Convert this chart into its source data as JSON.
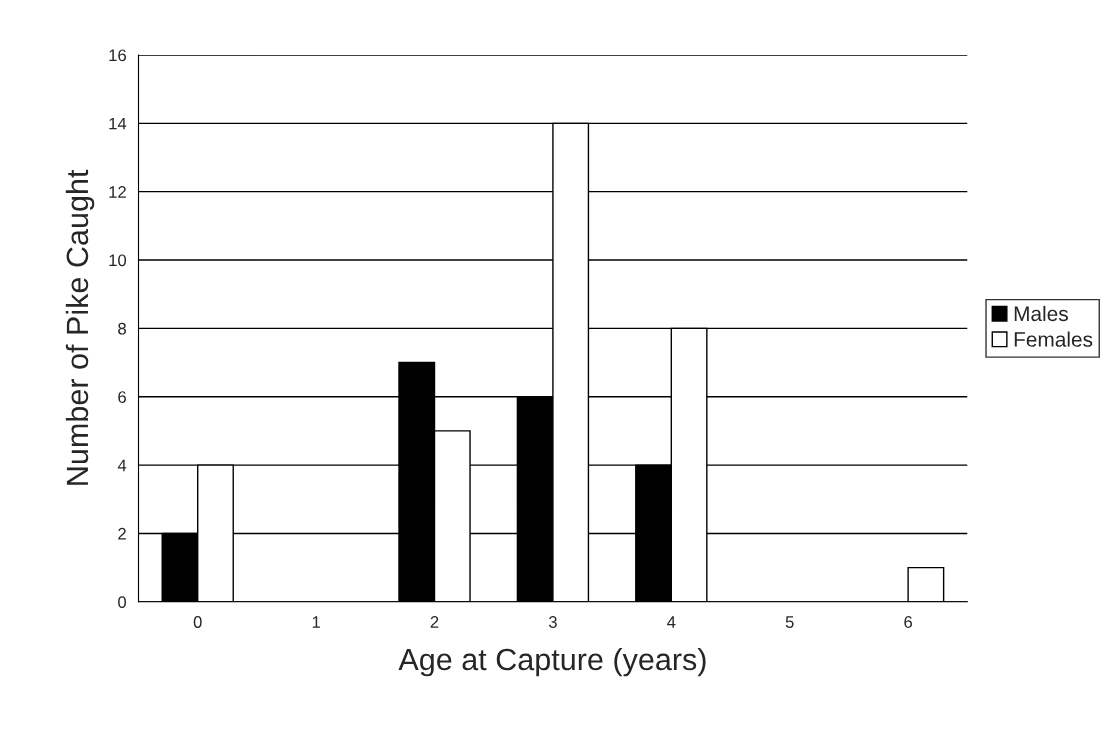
{
  "chart_data": {
    "type": "bar",
    "xlabel": "Age at Capture (years)",
    "ylabel": "Number of Pike Caught",
    "categories": [
      "0",
      "1",
      "2",
      "3",
      "4",
      "5",
      "6"
    ],
    "series": [
      {
        "name": "Males",
        "color": "#000000",
        "values": [
          2,
          0,
          7,
          6,
          4,
          0,
          0
        ]
      },
      {
        "name": "Females",
        "color": "#ffffff",
        "values": [
          4,
          0,
          5,
          14,
          8,
          0,
          1
        ]
      }
    ],
    "ylim": [
      0,
      16
    ],
    "yticks": [
      0,
      2,
      4,
      6,
      8,
      10,
      12,
      14,
      16
    ],
    "grid": "y",
    "legend": "right"
  }
}
